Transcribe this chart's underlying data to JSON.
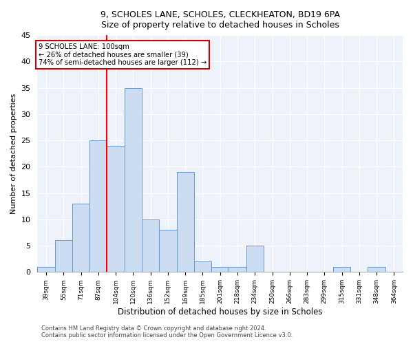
{
  "title1": "9, SCHOLES LANE, SCHOLES, CLECKHEATON, BD19 6PA",
  "title2": "Size of property relative to detached houses in Scholes",
  "xlabel": "Distribution of detached houses by size in Scholes",
  "ylabel": "Number of detached properties",
  "bar_labels": [
    "39sqm",
    "55sqm",
    "71sqm",
    "87sqm",
    "104sqm",
    "120sqm",
    "136sqm",
    "152sqm",
    "169sqm",
    "185sqm",
    "201sqm",
    "218sqm",
    "234sqm",
    "250sqm",
    "266sqm",
    "283sqm",
    "299sqm",
    "315sqm",
    "331sqm",
    "348sqm",
    "364sqm"
  ],
  "bar_values": [
    1,
    6,
    13,
    25,
    24,
    35,
    10,
    8,
    19,
    2,
    1,
    1,
    5,
    0,
    0,
    0,
    0,
    1,
    0,
    1,
    0
  ],
  "bar_color": "#ccddf2",
  "bar_edge_color": "#6699cc",
  "red_line_index": 4,
  "annotation_text": "9 SCHOLES LANE: 100sqm\n← 26% of detached houses are smaller (39)\n74% of semi-detached houses are larger (112) →",
  "annotation_box_color": "#ffffff",
  "annotation_box_edge_color": "#cc0000",
  "ylim": [
    0,
    45
  ],
  "yticks": [
    0,
    5,
    10,
    15,
    20,
    25,
    30,
    35,
    40,
    45
  ],
  "footer1": "Contains HM Land Registry data © Crown copyright and database right 2024.",
  "footer2": "Contains public sector information licensed under the Open Government Licence v3.0.",
  "bg_color": "#ffffff",
  "plot_bg_color": "#eef2fa"
}
